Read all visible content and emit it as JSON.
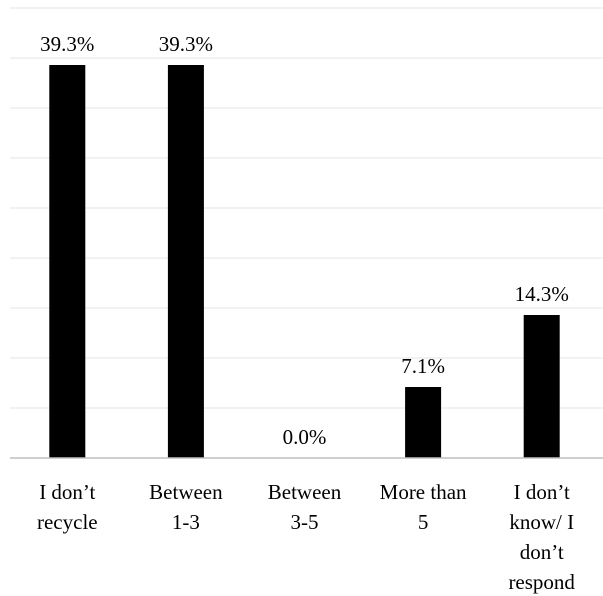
{
  "chart_data": {
    "type": "bar",
    "categories": [
      [
        "I don’t",
        "recycle"
      ],
      [
        "Between",
        "1-3"
      ],
      [
        "Between",
        "3-5"
      ],
      [
        "More than",
        "5"
      ],
      [
        "I don’t",
        "know/ I",
        "don’t",
        "respond"
      ]
    ],
    "values": [
      39.3,
      39.3,
      0.0,
      7.1,
      14.3
    ],
    "data_labels": [
      "39.3%",
      "39.3%",
      "0.0%",
      "7.1%",
      "14.3%"
    ],
    "ylim": [
      0,
      45
    ],
    "grid": true,
    "bar_color": "#000000",
    "grid_color": "#e6e6e6",
    "axis_color": "#bfbfbf"
  }
}
